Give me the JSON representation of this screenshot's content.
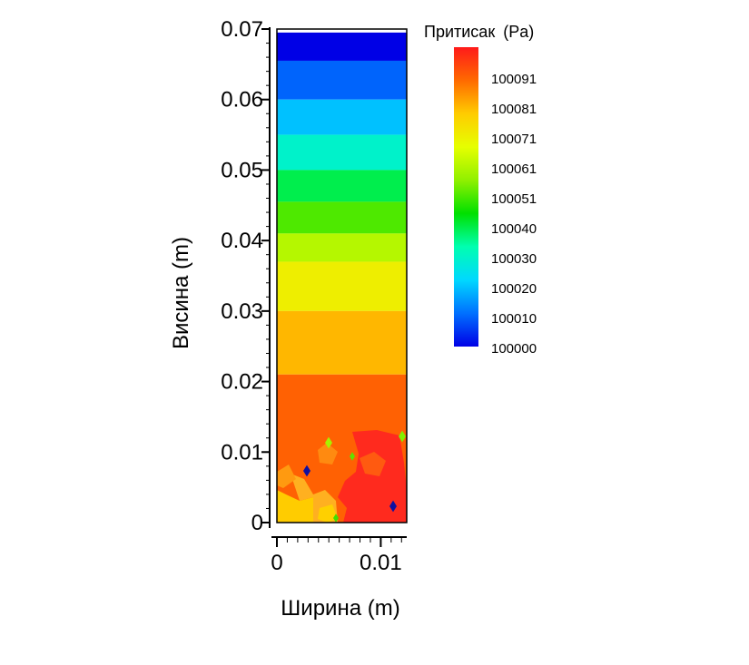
{
  "chart_data": {
    "type": "heatmap",
    "title": "",
    "xlabel": "Ширина (m)",
    "ylabel": "Висина (m)",
    "xlim": [
      0,
      0.0125
    ],
    "ylim": [
      0,
      0.07
    ],
    "x_ticks": [
      {
        "value": 0,
        "label": "0"
      },
      {
        "value": 0.01,
        "label": "0.01"
      }
    ],
    "y_ticks": [
      {
        "value": 0,
        "label": "0"
      },
      {
        "value": 0.01,
        "label": "0.01"
      },
      {
        "value": 0.02,
        "label": "0.02"
      },
      {
        "value": 0.03,
        "label": "0.03"
      },
      {
        "value": 0.04,
        "label": "0.04"
      },
      {
        "value": 0.05,
        "label": "0.05"
      },
      {
        "value": 0.06,
        "label": "0.06"
      },
      {
        "value": 0.07,
        "label": "0.07"
      }
    ],
    "colorbar": {
      "title": "Притисак",
      "unit": "(Pa)",
      "min": 100000,
      "max": 100101,
      "tick_values": [
        100091,
        100081,
        100071,
        100061,
        100051,
        100040,
        100030,
        100020,
        100010,
        100000
      ],
      "colors": [
        "#0000e6",
        "#0070ff",
        "#00d8ff",
        "#00ffb0",
        "#00e000",
        "#90f000",
        "#e6ff00",
        "#ffcc00",
        "#ff6a00",
        "#ff1a1a"
      ]
    },
    "bands": [
      {
        "y0": 0.0655,
        "y1": 0.0695,
        "value": 100000
      },
      {
        "y0": 0.06,
        "y1": 0.0655,
        "value": 100010
      },
      {
        "y0": 0.055,
        "y1": 0.06,
        "value": 100020
      },
      {
        "y0": 0.05,
        "y1": 0.055,
        "value": 100030
      },
      {
        "y0": 0.0455,
        "y1": 0.05,
        "value": 100040
      },
      {
        "y0": 0.041,
        "y1": 0.0455,
        "value": 100051
      },
      {
        "y0": 0.037,
        "y1": 0.041,
        "value": 100061
      },
      {
        "y0": 0.03,
        "y1": 0.037,
        "value": 100071
      },
      {
        "y0": 0.021,
        "y1": 0.03,
        "value": 100081
      },
      {
        "y0": 0,
        "y1": 0.021,
        "value": 100091
      }
    ],
    "grid": false,
    "legend": "right colorbar"
  }
}
